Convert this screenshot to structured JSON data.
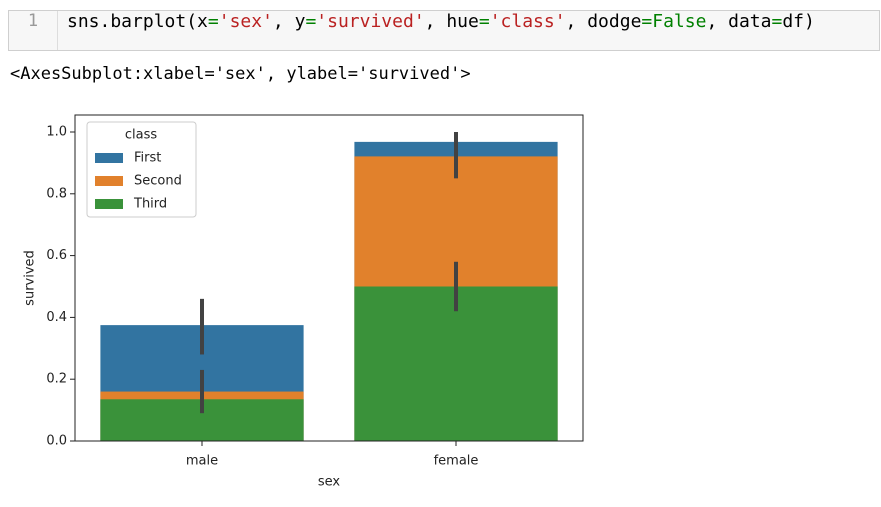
{
  "code_cell": {
    "prompt": "1",
    "code": [
      "sns.barplot(x",
      "=",
      "'sex'",
      ", y",
      "=",
      "'survived'",
      ", hue",
      "=",
      "'class'",
      ", dodge",
      "=",
      "False",
      ", data",
      "=",
      "df)"
    ]
  },
  "output_text": "<AxesSubplot:xlabel='sex', ylabel='survived'>",
  "chart_data": {
    "type": "bar",
    "x_label": "sex",
    "y_label": "survived",
    "categories": [
      "male",
      "female"
    ],
    "series": [
      {
        "name": "First",
        "color": "#3274a1",
        "values": [
          0.375,
          0.968
        ],
        "ci": [
          [
            0.28,
            0.46
          ],
          [
            0.93,
            1.0
          ]
        ]
      },
      {
        "name": "Second",
        "color": "#e1812c",
        "values": [
          0.16,
          0.921
        ],
        "ci": [
          [
            0.1,
            0.23
          ],
          [
            0.85,
            1.0
          ]
        ]
      },
      {
        "name": "Third",
        "color": "#3a923a",
        "values": [
          0.135,
          0.5
        ],
        "ci": [
          [
            0.09,
            0.18
          ],
          [
            0.42,
            0.58
          ]
        ]
      }
    ],
    "legend_title": "class",
    "legend": "upper left",
    "ylim": [
      0,
      1.055
    ],
    "yticks": [
      {
        "value": 0,
        "label": "0.0"
      },
      {
        "value": 0.2,
        "label": "0.2"
      },
      {
        "value": 0.4,
        "label": "0.4"
      },
      {
        "value": 0.6,
        "label": "0.6"
      },
      {
        "value": 0.8,
        "label": "0.8"
      },
      {
        "value": 1,
        "label": "1.0"
      }
    ]
  }
}
